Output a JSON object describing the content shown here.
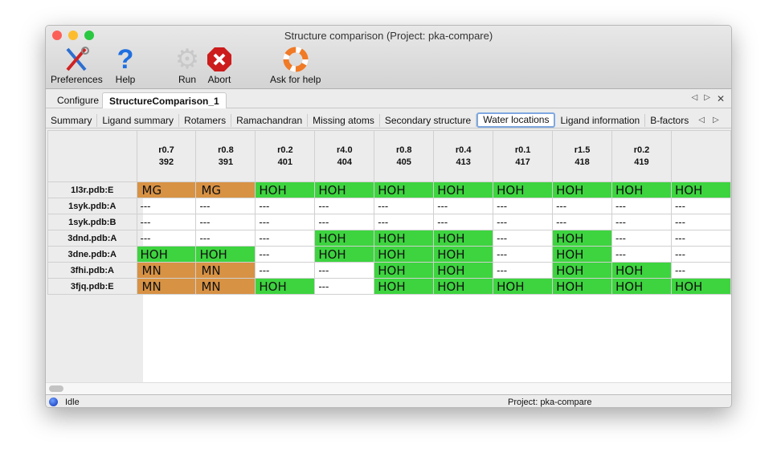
{
  "window": {
    "title": "Structure comparison (Project: pka-compare)"
  },
  "toolbar": [
    {
      "label": "Preferences",
      "icon": "tools-icon"
    },
    {
      "label": "Help",
      "icon": "help-icon"
    },
    {
      "label": "Run",
      "icon": "gear-icon"
    },
    {
      "label": "Abort",
      "icon": "abort-icon"
    },
    {
      "label": "Ask for help",
      "icon": "lifebuoy-icon"
    }
  ],
  "tabs": [
    {
      "label": "Configure"
    },
    {
      "label": "StructureComparison_1",
      "active": true
    }
  ],
  "subtabs": [
    {
      "label": "Summary"
    },
    {
      "label": "Ligand summary"
    },
    {
      "label": "Rotamers"
    },
    {
      "label": "Ramachandran"
    },
    {
      "label": "Missing atoms"
    },
    {
      "label": "Secondary structure"
    },
    {
      "label": "Water locations",
      "active": true
    },
    {
      "label": "Ligand information"
    },
    {
      "label": "B-factors"
    }
  ],
  "colors": {
    "metal": "#d89244",
    "water": "#3dd43f"
  },
  "table": {
    "columns": [
      {
        "r": "r0.7",
        "id": "392"
      },
      {
        "r": "r0.8",
        "id": "391"
      },
      {
        "r": "r0.2",
        "id": "401"
      },
      {
        "r": "r4.0",
        "id": "404"
      },
      {
        "r": "r0.8",
        "id": "405"
      },
      {
        "r": "r0.4",
        "id": "413"
      },
      {
        "r": "r0.1",
        "id": "417"
      },
      {
        "r": "r1.5",
        "id": "418"
      },
      {
        "r": "r0.2",
        "id": "419"
      },
      {
        "r": "",
        "id": ""
      }
    ],
    "rows": [
      {
        "label": "1l3r.pdb:E",
        "cells": [
          "MG",
          "MG",
          "HOH",
          "HOH",
          "HOH",
          "HOH",
          "HOH",
          "HOH",
          "HOH",
          "HOH"
        ]
      },
      {
        "label": "1syk.pdb:A",
        "cells": [
          "---",
          "---",
          "---",
          "---",
          "---",
          "---",
          "---",
          "---",
          "---",
          "---"
        ]
      },
      {
        "label": "1syk.pdb:B",
        "cells": [
          "---",
          "---",
          "---",
          "---",
          "---",
          "---",
          "---",
          "---",
          "---",
          "---"
        ]
      },
      {
        "label": "3dnd.pdb:A",
        "cells": [
          "---",
          "---",
          "---",
          "HOH",
          "HOH",
          "HOH",
          "---",
          "HOH",
          "---",
          "---"
        ]
      },
      {
        "label": "3dne.pdb:A",
        "cells": [
          "HOH",
          "HOH",
          "---",
          "HOH",
          "HOH",
          "HOH",
          "---",
          "HOH",
          "---",
          "---"
        ]
      },
      {
        "label": "3fhi.pdb:A",
        "cells": [
          "MN",
          "MN",
          "---",
          "---",
          "HOH",
          "HOH",
          "---",
          "HOH",
          "HOH",
          "---"
        ]
      },
      {
        "label": "3fjq.pdb:E",
        "cells": [
          "MN",
          "MN",
          "HOH",
          "---",
          "HOH",
          "HOH",
          "HOH",
          "HOH",
          "HOH",
          "HOH"
        ]
      }
    ]
  },
  "status": {
    "state": "Idle",
    "project": "Project: pka-compare"
  }
}
